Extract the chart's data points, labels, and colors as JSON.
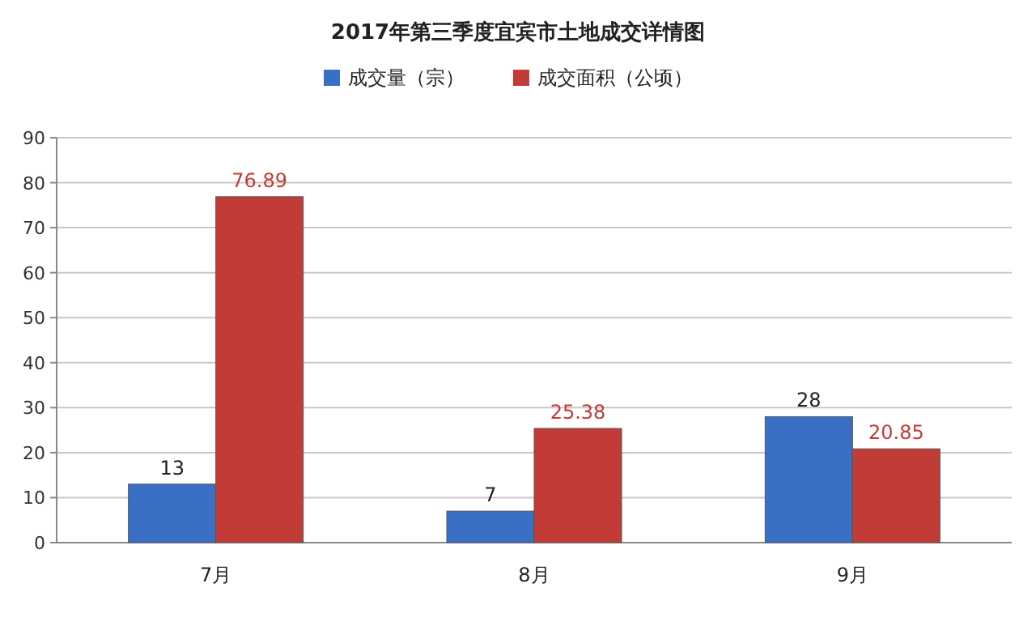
{
  "chart_data": {
    "type": "bar",
    "title": "2017年第三季度宜宾市土地成交详情图",
    "categories": [
      "7月",
      "8月",
      "9月"
    ],
    "series": [
      {
        "name": "成交量（宗）",
        "color": "#3a6fc6",
        "values": [
          13,
          7,
          28
        ]
      },
      {
        "name": "成交面积（公顷）",
        "color": "#c23b36",
        "values": [
          76.89,
          25.38,
          20.85
        ]
      }
    ],
    "ylim": [
      0,
      90
    ],
    "yticks": [
      0,
      10,
      20,
      30,
      40,
      50,
      60,
      70,
      80,
      90
    ],
    "grid": "y",
    "legend": "top",
    "data_labels": true
  }
}
